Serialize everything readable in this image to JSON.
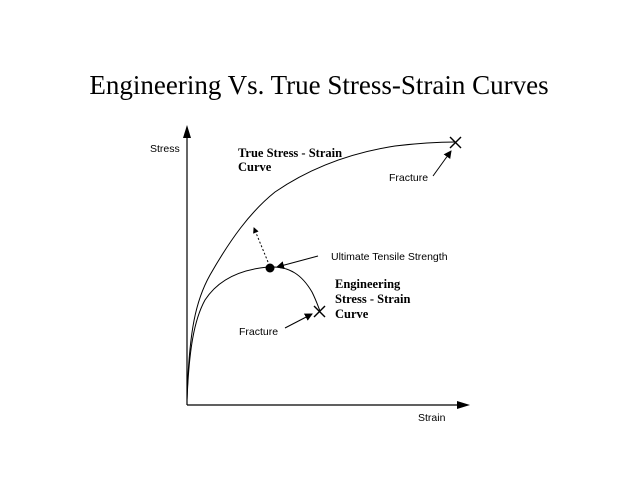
{
  "title": "Engineering Vs. True Stress-Strain Curves",
  "axes": {
    "y_label": "Stress",
    "x_label": "Strain"
  },
  "labels": {
    "true_curve": [
      "True Stress - Strain",
      "Curve"
    ],
    "engineering_curve": [
      "Engineering",
      "Stress - Strain",
      "Curve"
    ],
    "fracture_true": "Fracture",
    "fracture_engineering": "Fracture",
    "uts": "Ultimate Tensile Strength"
  },
  "colors": {
    "ink": "#000000",
    "background": "#ffffff"
  }
}
